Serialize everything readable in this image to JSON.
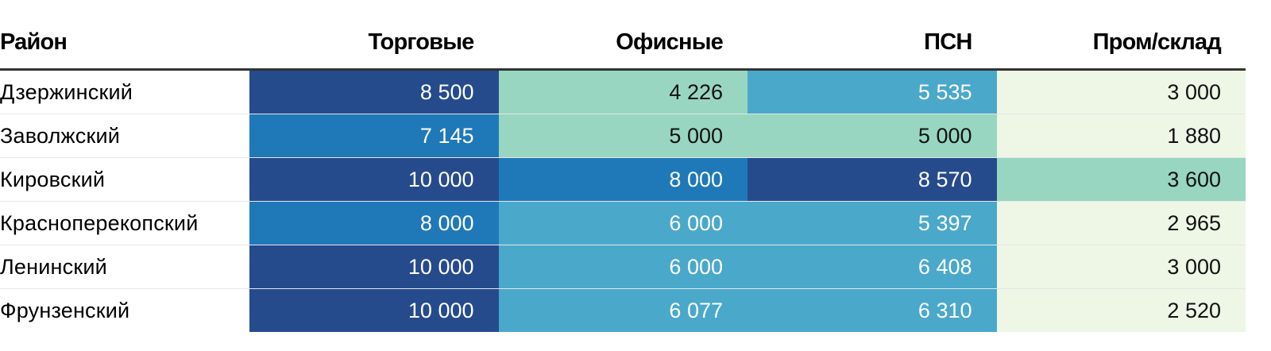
{
  "chart_data": {
    "type": "table",
    "columns": [
      "Район",
      "Торговые",
      "Офисные",
      "ПСН",
      "Пром/склад"
    ],
    "rows": [
      {
        "name": "Дзержинский",
        "values": [
          "8 500",
          "4 226",
          "5 535",
          "3 000"
        ]
      },
      {
        "name": "Заволжский",
        "values": [
          "7 145",
          "5 000",
          "5 000",
          "1 880"
        ]
      },
      {
        "name": "Кировский",
        "values": [
          "10 000",
          "8 000",
          "8 570",
          "3 600"
        ]
      },
      {
        "name": "Красноперекопский",
        "values": [
          "8 000",
          "6 000",
          "5 397",
          "2 965"
        ]
      },
      {
        "name": "Ленинский",
        "values": [
          "10 000",
          "6 000",
          "6 408",
          "3 000"
        ]
      },
      {
        "name": "Фрунзенский",
        "values": [
          "10 000",
          "6 077",
          "6 310",
          "2 520"
        ]
      }
    ],
    "cell_colors": [
      [
        "#264b8d",
        "#98d6c1",
        "#4aa8cb",
        "#eef7e6"
      ],
      [
        "#1f79b9",
        "#98d6c1",
        "#98d6c1",
        "#eef7e6"
      ],
      [
        "#264b8d",
        "#1f79b9",
        "#264b8d",
        "#98d6c1"
      ],
      [
        "#1f79b9",
        "#4aa8cb",
        "#4aa8cb",
        "#eef7e6"
      ],
      [
        "#264b8d",
        "#4aa8cb",
        "#4aa8cb",
        "#eef7e6"
      ],
      [
        "#264b8d",
        "#4aa8cb",
        "#4aa8cb",
        "#eef7e6"
      ]
    ],
    "dark_text_colors": [
      "#98d6c1",
      "#eef7e6"
    ]
  }
}
